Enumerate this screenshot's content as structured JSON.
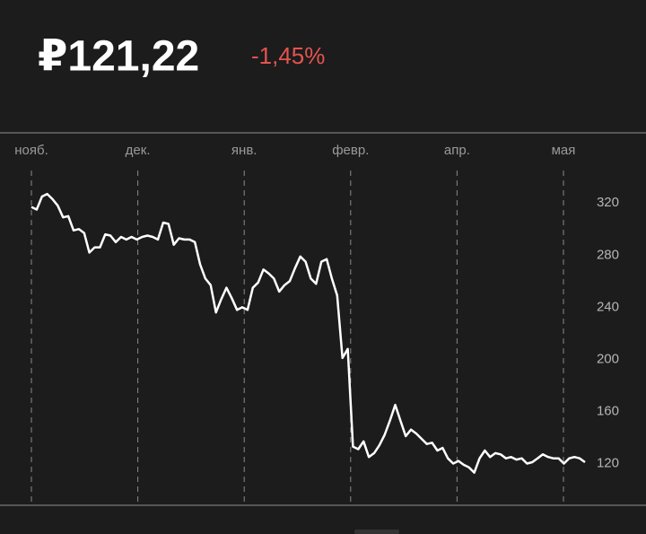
{
  "header": {
    "price": "₽121,22",
    "change": "-1,45%"
  },
  "chart_data": {
    "type": "line",
    "months": [
      "нояб.",
      "дек.",
      "янв.",
      "февр.",
      "апр.",
      "мая"
    ],
    "values": [
      317,
      315,
      325,
      327,
      323,
      318,
      309,
      310,
      299,
      300,
      297,
      282,
      286,
      286,
      296,
      295,
      290,
      294,
      292,
      294,
      292,
      294,
      295,
      294,
      292,
      305,
      304,
      288,
      293,
      292,
      292,
      290,
      273,
      262,
      257,
      236,
      246,
      255,
      247,
      238,
      240,
      238,
      255,
      259,
      269,
      266,
      262,
      252,
      257,
      260,
      270,
      279,
      275,
      262,
      258,
      275,
      277,
      262,
      249,
      201,
      208,
      133,
      131,
      137,
      125,
      128,
      134,
      142,
      153,
      165,
      153,
      141,
      146,
      143,
      139,
      135,
      136,
      130,
      132,
      124,
      120,
      122,
      119,
      117,
      113,
      124,
      130,
      125,
      128,
      127,
      124,
      125,
      123,
      124,
      120,
      121,
      124,
      127,
      125,
      124,
      124,
      120,
      124,
      125,
      124,
      121
    ],
    "color": "#ffffff",
    "ylim": [
      90,
      345
    ],
    "yticks": [
      120,
      160,
      200,
      240,
      280,
      320
    ]
  }
}
